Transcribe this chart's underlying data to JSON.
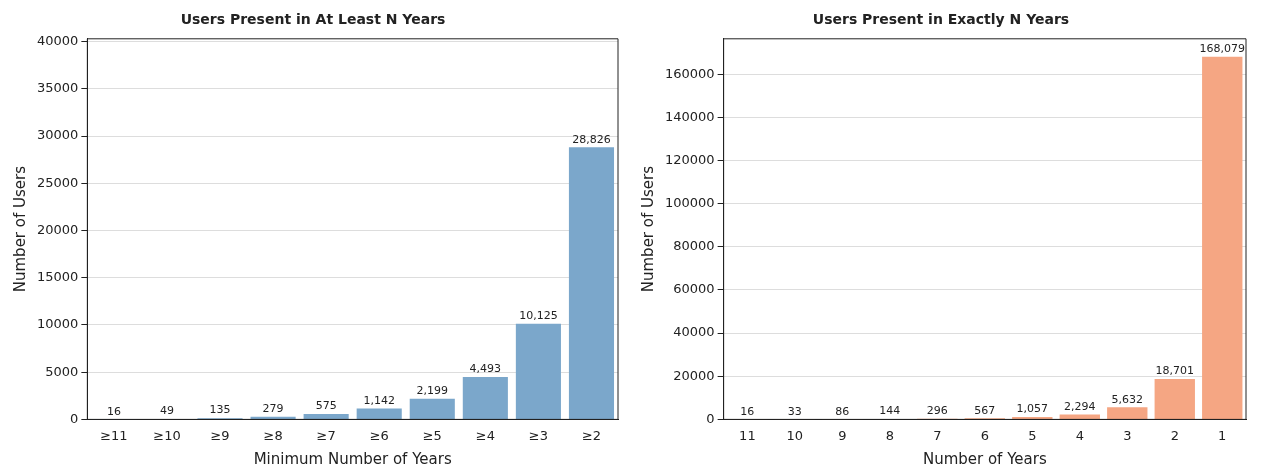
{
  "chart_data": [
    {
      "type": "bar",
      "title": "Users Present in At Least N Years",
      "xlabel": "Minimum Number of Years",
      "ylabel": "Number of Users",
      "categories": [
        "≥11",
        "≥10",
        "≥9",
        "≥8",
        "≥7",
        "≥6",
        "≥5",
        "≥4",
        "≥3",
        "≥2"
      ],
      "values": [
        16,
        49,
        135,
        279,
        575,
        1142,
        2199,
        4493,
        10125,
        28826
      ],
      "value_labels": [
        "16",
        "49",
        "135",
        "279",
        "575",
        "1,142",
        "2,199",
        "4,493",
        "10,125",
        "28,826"
      ],
      "color": "#7ba7cb",
      "ylim": [
        0,
        40300
      ],
      "yticks": [
        0,
        5000,
        10000,
        15000,
        20000,
        25000,
        30000,
        35000,
        40000
      ],
      "grid": "y"
    },
    {
      "type": "bar",
      "title": "Users Present in Exactly N Years",
      "xlabel": "Number of Years",
      "ylabel": "Number of Users",
      "categories": [
        "11",
        "10",
        "9",
        "8",
        "7",
        "6",
        "5",
        "4",
        "3",
        "2",
        "1"
      ],
      "values": [
        16,
        33,
        86,
        144,
        296,
        567,
        1057,
        2294,
        5632,
        18701,
        168079
      ],
      "value_labels": [
        "16",
        "33",
        "86",
        "144",
        "296",
        "567",
        "1,057",
        "2,294",
        "5,632",
        "18,701",
        "168,079"
      ],
      "color": "#f5a683",
      "ylim": [
        0,
        176400
      ],
      "yticks": [
        0,
        20000,
        40000,
        60000,
        80000,
        100000,
        120000,
        140000,
        160000
      ],
      "grid": "y"
    }
  ]
}
